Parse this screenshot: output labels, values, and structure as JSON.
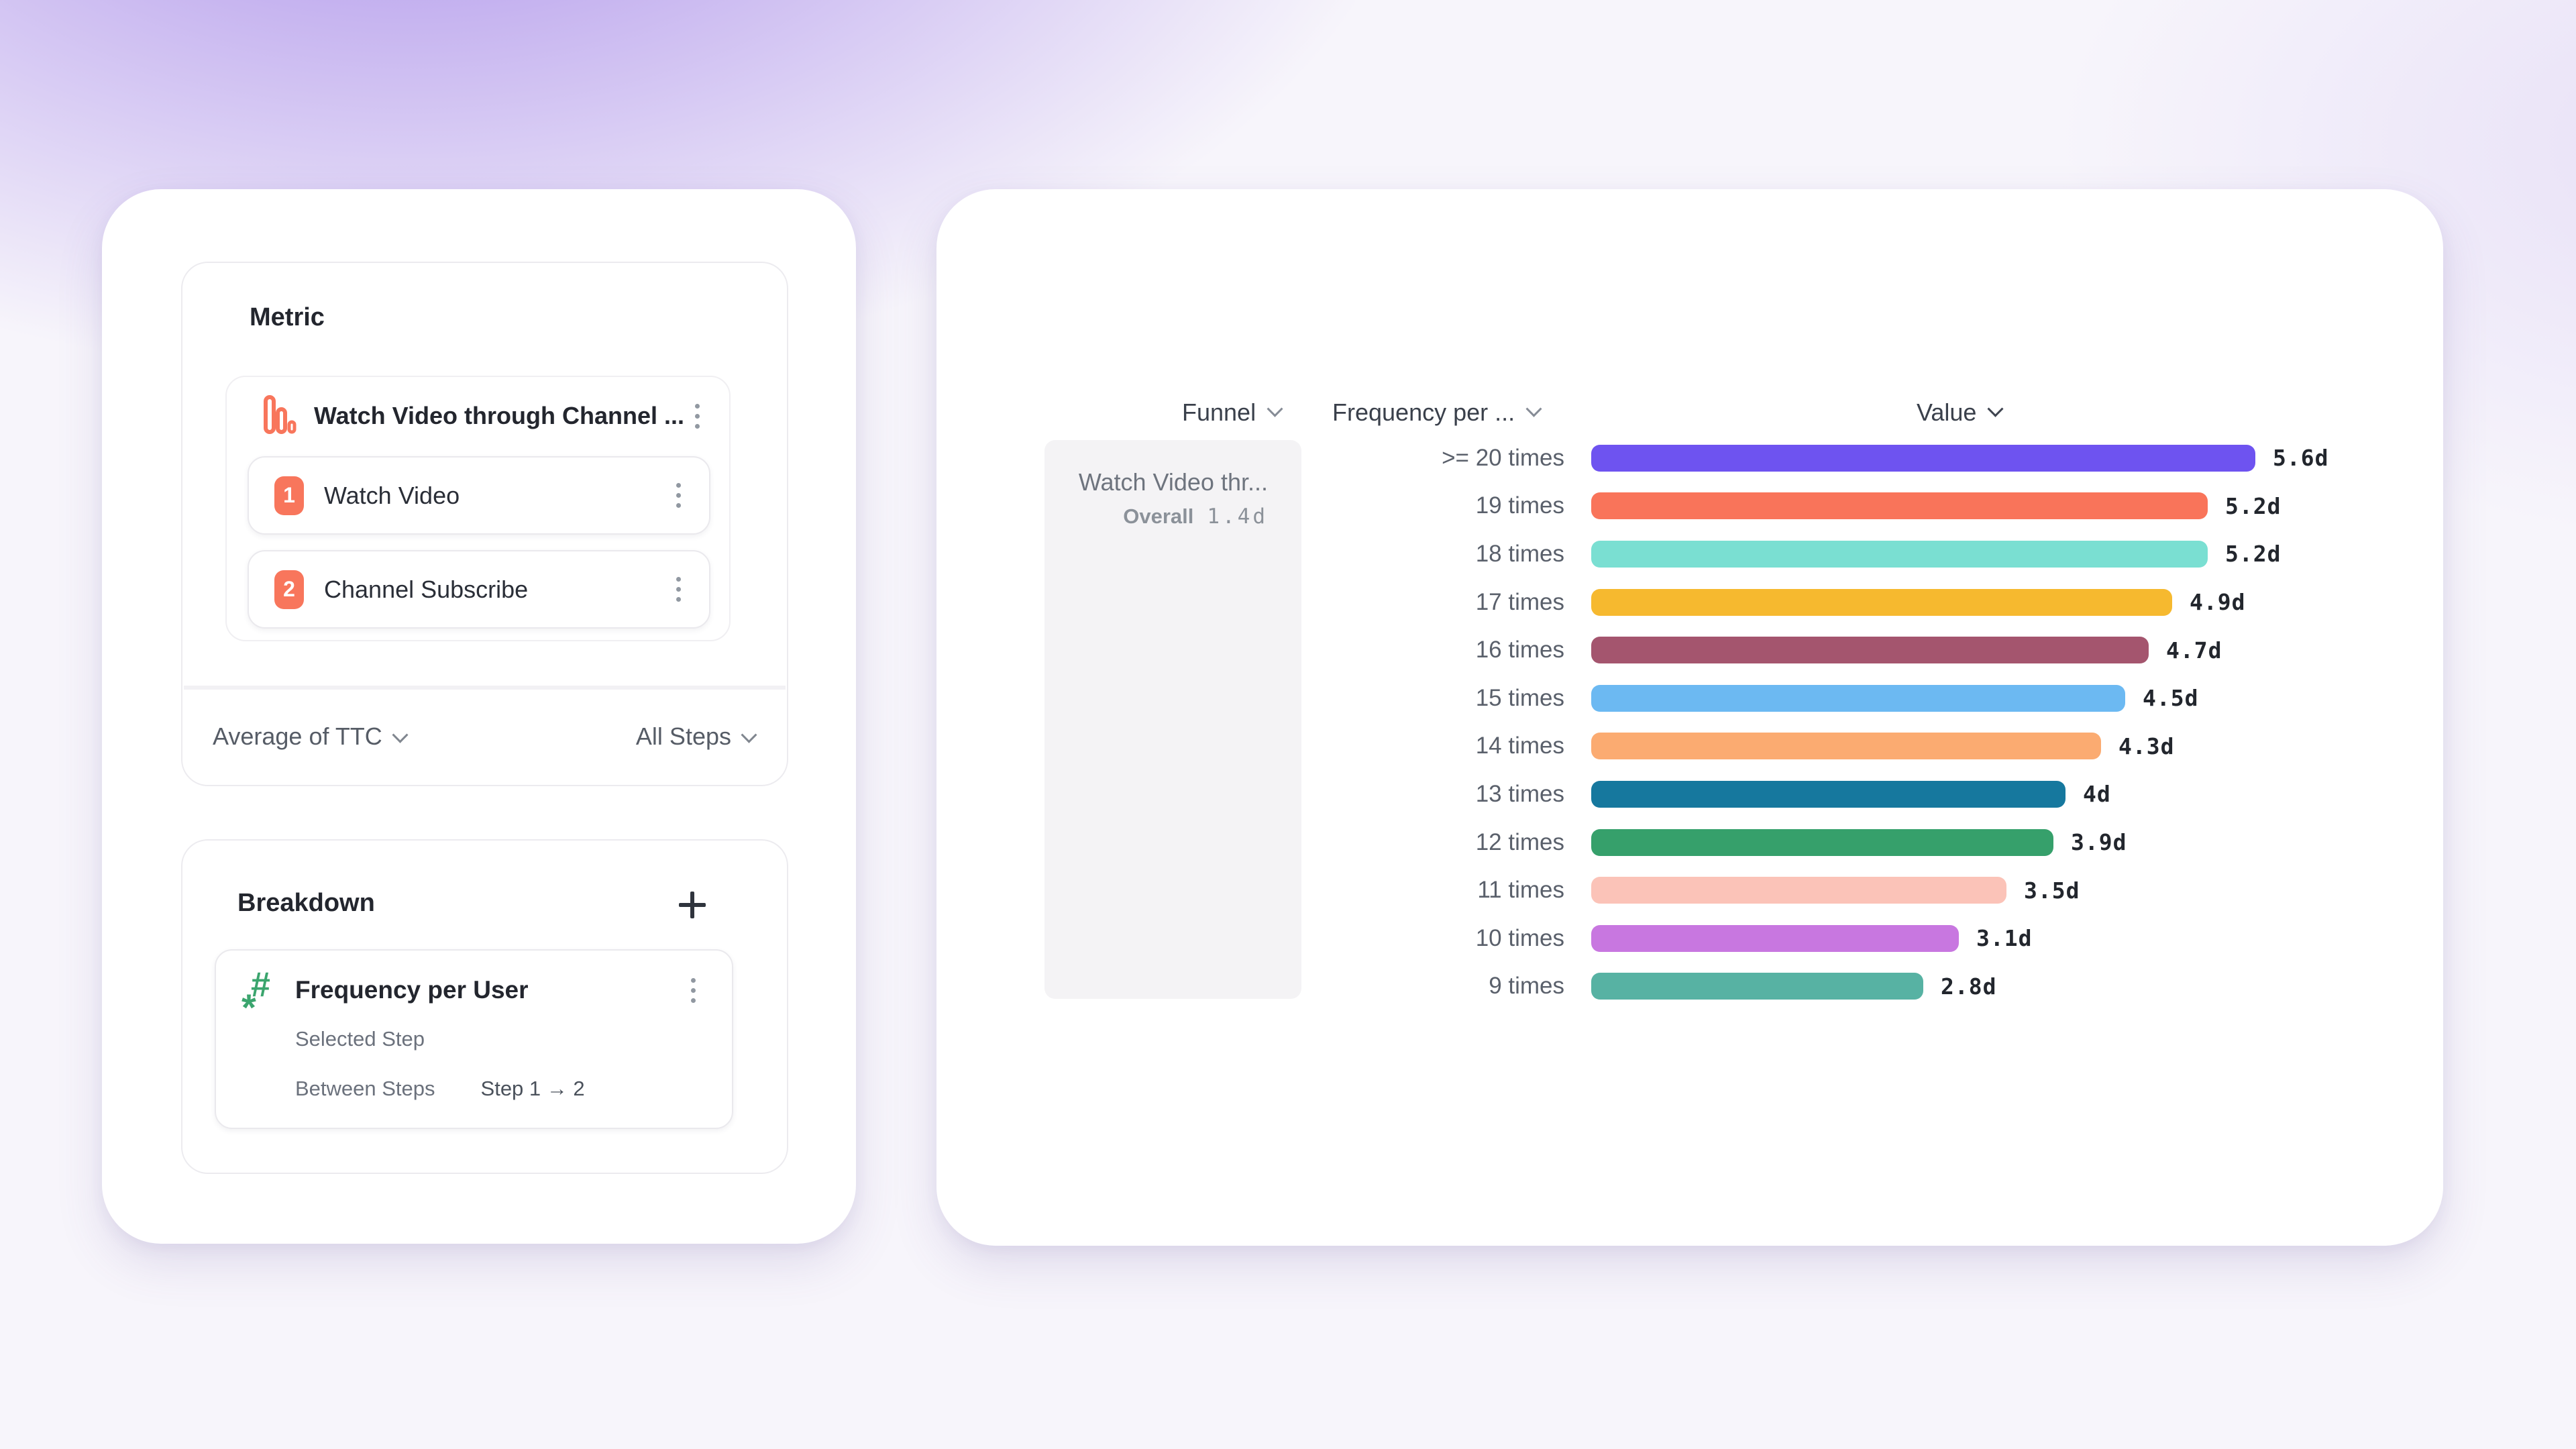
{
  "colors": {
    "accent_coral": "#F8765C",
    "accent_green": "#3BA56E",
    "card_bg": "#FFFFFF",
    "background_purple": "#A98DE9"
  },
  "left_panel": {
    "metric": {
      "title": "Metric",
      "funnel_name": "Watch Video through Channel ...",
      "steps": [
        {
          "num": "1",
          "label": "Watch Video"
        },
        {
          "num": "2",
          "label": "Channel Subscribe"
        }
      ],
      "aggregation_label": "Average of TTC",
      "steps_filter_label": "All Steps"
    },
    "breakdown": {
      "title": "Breakdown",
      "property": "Frequency per User",
      "sub_row_1": "Selected Step",
      "sub_row_2_label": "Between Steps",
      "sub_row_2_value": "Step 1 → 2"
    }
  },
  "right_panel": {
    "columns": {
      "funnel": "Funnel",
      "frequency": "Frequency per ...",
      "value": "Value"
    },
    "funnel_cell": {
      "name": "Watch Video thr...",
      "overall_label": "Overall",
      "overall_value": "1.4d"
    }
  },
  "icons": [
    "funnel-metric-icon",
    "kebab-menu-icon",
    "chevron-down-icon",
    "plus-icon",
    "hash-number-icon"
  ],
  "chart_data": {
    "type": "bar",
    "orientation": "horizontal",
    "title": "",
    "xlabel": "Value (days)",
    "ylabel": "Frequency per User",
    "grid": false,
    "legend": "none",
    "xlim": [
      0,
      5.6
    ],
    "unit": "d",
    "categories": [
      ">= 20 times",
      "19 times",
      "18 times",
      "17 times",
      "16 times",
      "15 times",
      "14 times",
      "13 times",
      "12 times",
      "11 times",
      "10 times",
      "9 times"
    ],
    "values": [
      5.6,
      5.2,
      5.2,
      4.9,
      4.7,
      4.5,
      4.3,
      4.0,
      3.9,
      3.5,
      3.1,
      2.8
    ],
    "value_labels": [
      "5.6d",
      "5.2d",
      "5.2d",
      "4.9d",
      "4.7d",
      "4.5d",
      "4.3d",
      "4d",
      "3.9d",
      "3.5d",
      "3.1d",
      "2.8d"
    ],
    "colors": [
      "#6E53F0",
      "#F9745A",
      "#7ADFD2",
      "#F6B92F",
      "#A4556E",
      "#6CB9F2",
      "#FBAB71",
      "#16789E",
      "#36A06B",
      "#FBC3B8",
      "#C877E0",
      "#57B2A3"
    ]
  }
}
